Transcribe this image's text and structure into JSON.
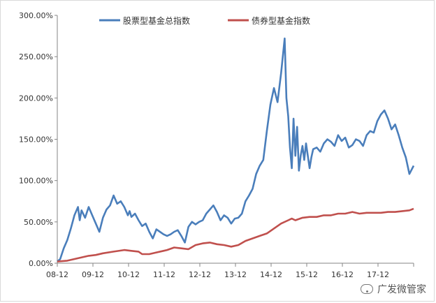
{
  "chart_data": {
    "type": "line",
    "x_ticks": [
      "08-12",
      "09-12",
      "10-12",
      "11-12",
      "12-12",
      "13-12",
      "14-12",
      "15-12",
      "16-12",
      "17-12"
    ],
    "y_ticks": [
      "0.00%",
      "50.00%",
      "100.00%",
      "150.00%",
      "200.00%",
      "250.00%",
      "300.00%"
    ],
    "ylim": [
      0,
      300
    ],
    "xlim": [
      2008.92,
      2018.92
    ],
    "grid": false,
    "legend_position": "top",
    "colors": {
      "stock": "#4a7ebb",
      "bond": "#c0504d"
    },
    "series": [
      {
        "name": "股票型基金总指数",
        "x": [
          2008.92,
          2009.0,
          2009.1,
          2009.2,
          2009.3,
          2009.4,
          2009.5,
          2009.55,
          2009.6,
          2009.7,
          2009.8,
          2009.9,
          2010.0,
          2010.1,
          2010.2,
          2010.3,
          2010.4,
          2010.5,
          2010.6,
          2010.7,
          2010.8,
          2010.9,
          2010.95,
          2011.0,
          2011.1,
          2011.2,
          2011.3,
          2011.4,
          2011.5,
          2011.6,
          2011.7,
          2011.8,
          2011.9,
          2012.0,
          2012.1,
          2012.2,
          2012.3,
          2012.4,
          2012.5,
          2012.6,
          2012.7,
          2012.8,
          2012.9,
          2013.0,
          2013.1,
          2013.2,
          2013.3,
          2013.4,
          2013.5,
          2013.6,
          2013.7,
          2013.8,
          2013.9,
          2014.0,
          2014.1,
          2014.2,
          2014.3,
          2014.4,
          2014.5,
          2014.6,
          2014.7,
          2014.8,
          2014.9,
          2015.0,
          2015.1,
          2015.2,
          2015.3,
          2015.35,
          2015.4,
          2015.45,
          2015.5,
          2015.55,
          2015.6,
          2015.65,
          2015.7,
          2015.75,
          2015.8,
          2015.85,
          2015.9,
          2016.0,
          2016.05,
          2016.1,
          2016.2,
          2016.3,
          2016.4,
          2016.5,
          2016.6,
          2016.7,
          2016.8,
          2016.9,
          2017.0,
          2017.1,
          2017.2,
          2017.3,
          2017.4,
          2017.5,
          2017.6,
          2017.7,
          2017.8,
          2017.9,
          2018.0,
          2018.1,
          2018.2,
          2018.3,
          2018.4,
          2018.5,
          2018.6,
          2018.7,
          2018.8,
          2018.92
        ],
        "values": [
          2,
          5,
          18,
          28,
          42,
          58,
          68,
          52,
          64,
          55,
          68,
          58,
          48,
          38,
          55,
          65,
          70,
          82,
          72,
          75,
          68,
          58,
          63,
          56,
          60,
          52,
          45,
          48,
          38,
          30,
          41,
          38,
          35,
          33,
          35,
          38,
          40,
          33,
          25,
          44,
          50,
          47,
          50,
          52,
          60,
          65,
          70,
          62,
          52,
          58,
          55,
          48,
          54,
          55,
          60,
          75,
          82,
          90,
          108,
          118,
          125,
          160,
          192,
          212,
          195,
          230,
          272,
          200,
          178,
          140,
          115,
          175,
          130,
          165,
          112,
          130,
          142,
          125,
          145,
          115,
          128,
          138,
          140,
          135,
          145,
          150,
          147,
          142,
          155,
          148,
          152,
          140,
          143,
          150,
          148,
          142,
          155,
          160,
          158,
          172,
          180,
          185,
          175,
          162,
          168,
          155,
          140,
          128,
          108,
          118
        ]
      },
      {
        "name": "债券型基金指数",
        "x": [
          2008.92,
          2009.2,
          2009.5,
          2009.8,
          2010.0,
          2010.2,
          2010.5,
          2010.8,
          2011.0,
          2011.2,
          2011.3,
          2011.5,
          2011.7,
          2011.9,
          2012.0,
          2012.2,
          2012.4,
          2012.6,
          2012.8,
          2013.0,
          2013.2,
          2013.4,
          2013.6,
          2013.8,
          2014.0,
          2014.2,
          2014.4,
          2014.6,
          2014.8,
          2015.0,
          2015.2,
          2015.4,
          2015.5,
          2015.6,
          2015.8,
          2016.0,
          2016.2,
          2016.4,
          2016.6,
          2016.8,
          2017.0,
          2017.2,
          2017.4,
          2017.6,
          2017.8,
          2018.0,
          2018.2,
          2018.4,
          2018.6,
          2018.8,
          2018.92
        ],
        "values": [
          2,
          3,
          6,
          9,
          10,
          12,
          14,
          16,
          15,
          14,
          11,
          11,
          13,
          15,
          16,
          19,
          18,
          17,
          22,
          24,
          25,
          23,
          22,
          20,
          22,
          27,
          30,
          33,
          36,
          42,
          48,
          52,
          54,
          52,
          55,
          56,
          56,
          58,
          58,
          60,
          60,
          62,
          60,
          61,
          61,
          61,
          62,
          62,
          63,
          64,
          66
        ]
      }
    ]
  },
  "watermark": {
    "text": "广发微管家",
    "icon": "wechat-icon"
  }
}
